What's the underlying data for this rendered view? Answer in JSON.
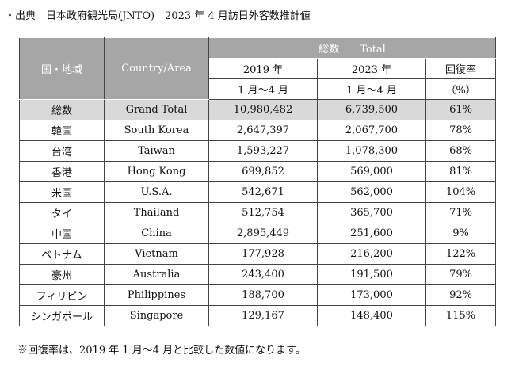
{
  "source": "・出典　日本政府観光局(JNTO)　2023 年 4 月訪日外客数推計値",
  "table": {
    "header": {
      "region_ja": "国・地域",
      "region_en": "Country/Area",
      "total": "総数　　Total",
      "year1": "2019 年",
      "year2": "2023 年",
      "rate": "回復率",
      "period1": "1 月～4 月",
      "period2": "1 月～4 月",
      "rate_unit": "（%）"
    },
    "rows": [
      [
        "総数",
        "Grand Total",
        "10,980,482",
        "6,739,500",
        "61%"
      ],
      [
        "韓国",
        "South Korea",
        "2,647,397",
        "2,067,700",
        "78%"
      ],
      [
        "台湾",
        "Taiwan",
        "1,593,227",
        "1,078,300",
        "68%"
      ],
      [
        "香港",
        "Hong Kong",
        "699,852",
        "569,000",
        "81%"
      ],
      [
        "米国",
        "U.S.A.",
        "542,671",
        "562,000",
        "104%"
      ],
      [
        "タイ",
        "Thailand",
        "512,754",
        "365,700",
        "71%"
      ],
      [
        "中国",
        "China",
        "2,895,449",
        "251,600",
        "9%"
      ],
      [
        "ベトナム",
        "Vietnam",
        "177,928",
        "216,200",
        "122%"
      ],
      [
        "豪州",
        "Australia",
        "243,400",
        "191,500",
        "79%"
      ],
      [
        "フィリピン",
        "Philippines",
        "188,700",
        "173,000",
        "92%"
      ],
      [
        "シンガポール",
        "Singapore",
        "129,167",
        "148,400",
        "115%"
      ]
    ]
  },
  "footnote": "※回復率は、2019 年 1 月～4 月と比較した数値になります。"
}
